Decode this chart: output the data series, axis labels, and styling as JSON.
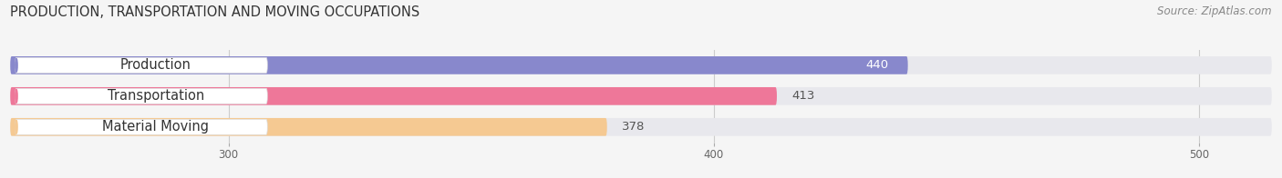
{
  "title": "PRODUCTION, TRANSPORTATION AND MOVING OCCUPATIONS",
  "source": "Source: ZipAtlas.com",
  "categories": [
    "Production",
    "Transportation",
    "Material Moving"
  ],
  "values": [
    440,
    413,
    378
  ],
  "bar_colors": [
    "#8888cc",
    "#ee7799",
    "#f5c992"
  ],
  "bar_bg_color": "#e8e8ed",
  "value_inside_color": [
    "#ffffff",
    "#555555",
    "#555555"
  ],
  "xlim_min": 255,
  "xlim_max": 515,
  "xticks": [
    300,
    400,
    500
  ],
  "bar_height": 0.58,
  "label_fontsize": 10.5,
  "value_fontsize": 9.5,
  "title_fontsize": 10.5,
  "source_fontsize": 8.5,
  "background_color": "#f5f5f5"
}
